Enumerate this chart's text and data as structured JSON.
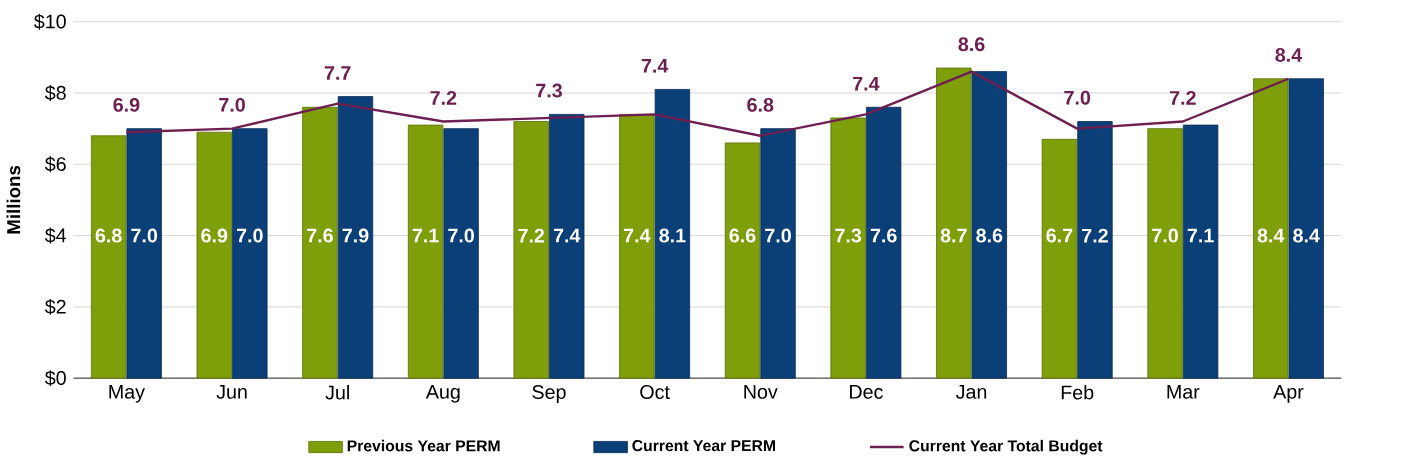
{
  "chart_data": {
    "type": "bar",
    "ylabel": "Millions",
    "categories": [
      "May",
      "Jun",
      "Jul",
      "Aug",
      "Sep",
      "Oct",
      "Nov",
      "Dec",
      "Jan",
      "Feb",
      "Mar",
      "Apr"
    ],
    "series": [
      {
        "name": "Previous Year PERM",
        "color": "#7f9f0a",
        "values": [
          6.8,
          6.9,
          7.6,
          7.1,
          7.2,
          7.4,
          6.6,
          7.3,
          8.7,
          6.7,
          7.0,
          8.4
        ],
        "value_labels": [
          "6.8",
          "6.9",
          "7.6",
          "7.1",
          "7.2",
          "7.4",
          "6.6",
          "7.3",
          "8.7",
          "6.7",
          "7.0",
          "8.4"
        ]
      },
      {
        "name": "Current Year PERM",
        "color": "#0b3f78",
        "values": [
          7.0,
          7.0,
          7.9,
          7.0,
          7.4,
          8.1,
          7.0,
          7.6,
          8.6,
          7.2,
          7.1,
          8.4
        ],
        "value_labels": [
          "7.0",
          "7.0",
          "7.9",
          "7.0",
          "7.4",
          "8.1",
          "7.0",
          "7.6",
          "8.6",
          "7.2",
          "7.1",
          "8.4"
        ]
      },
      {
        "name": "Current Year Total Budget",
        "type": "line",
        "color": "#6e1f52",
        "values": [
          6.9,
          7.0,
          7.7,
          7.2,
          7.3,
          7.4,
          6.8,
          7.4,
          8.6,
          7.0,
          7.2,
          8.4
        ],
        "value_labels": [
          "6.9",
          "7.0",
          "7.7",
          "7.2",
          "7.3",
          "7.4",
          "6.8",
          "7.4",
          "8.6",
          "7.0",
          "7.2",
          "8.4"
        ]
      }
    ],
    "ylim": [
      0,
      10
    ],
    "yticks": [
      {
        "value": 0,
        "label": "$0"
      },
      {
        "value": 2,
        "label": "$2"
      },
      {
        "value": 4,
        "label": "$4"
      },
      {
        "value": 6,
        "label": "$6"
      },
      {
        "value": 8,
        "label": "$8"
      },
      {
        "value": 10,
        "label": "$10"
      }
    ],
    "grid": "y",
    "legend": "bottom",
    "marker": "none"
  }
}
